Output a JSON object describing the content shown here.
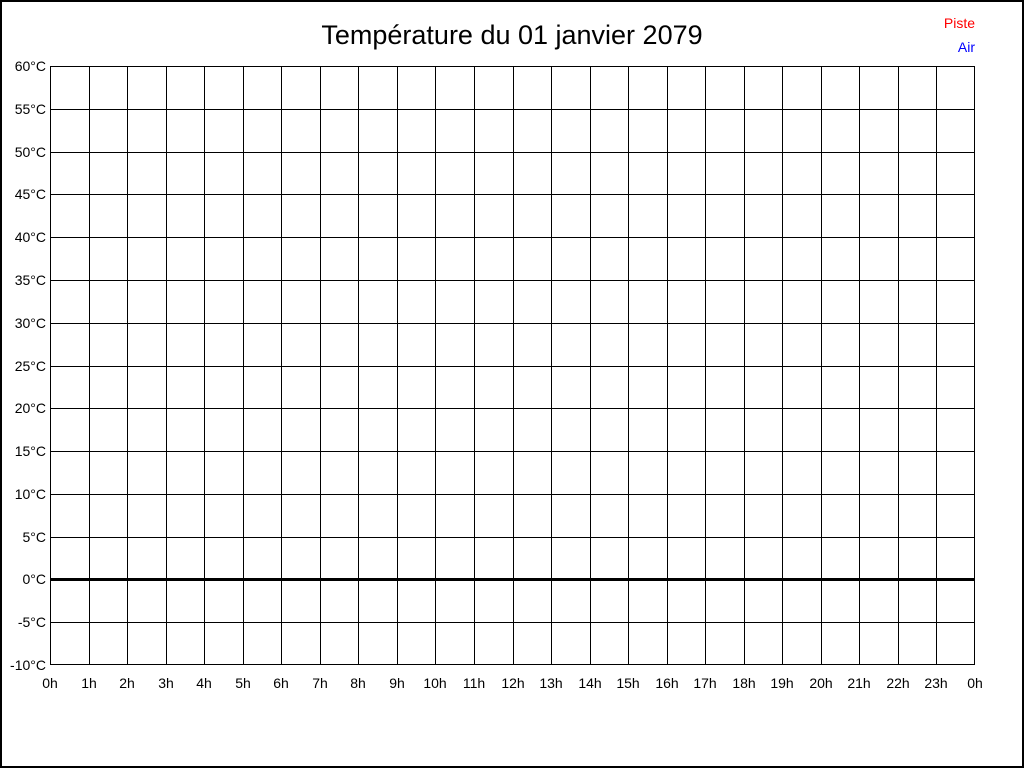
{
  "page": {
    "title": "Température du 01 janvier 2079"
  },
  "chart_data": {
    "type": "line",
    "title": "Température du 01 janvier 2079",
    "xlabel": "",
    "ylabel": "",
    "x_tick_labels": [
      "0h",
      "1h",
      "2h",
      "3h",
      "4h",
      "5h",
      "6h",
      "7h",
      "8h",
      "9h",
      "10h",
      "11h",
      "12h",
      "13h",
      "14h",
      "15h",
      "16h",
      "17h",
      "18h",
      "19h",
      "20h",
      "21h",
      "22h",
      "23h",
      "0h"
    ],
    "y_tick_labels": [
      "60°C",
      "55°C",
      "50°C",
      "45°C",
      "40°C",
      "35°C",
      "30°C",
      "25°C",
      "20°C",
      "15°C",
      "10°C",
      "5°C",
      "0°C",
      "-5°C",
      "-10°C"
    ],
    "ylim": [
      -10,
      60
    ],
    "y_tick_step": 5,
    "x_hours": [
      0,
      1,
      2,
      3,
      4,
      5,
      6,
      7,
      8,
      9,
      10,
      11,
      12,
      13,
      14,
      15,
      16,
      17,
      18,
      19,
      20,
      21,
      22,
      23,
      24
    ],
    "grid": true,
    "grid_color": "#000000",
    "zero_line_value": 0,
    "zero_line_thick": true,
    "legend_position": "top-right",
    "series": [
      {
        "name": "Piste",
        "color": "#ff0000",
        "values": []
      },
      {
        "name": "Air",
        "color": "#0000ff",
        "values": []
      }
    ]
  }
}
